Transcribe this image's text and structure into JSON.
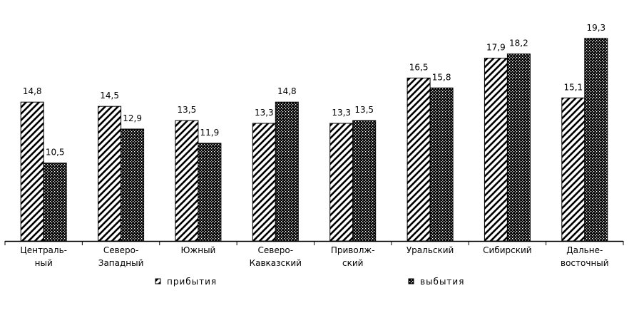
{
  "chart_data": {
    "type": "bar",
    "categories": [
      [
        "Централь-",
        "ный"
      ],
      [
        "Северо-",
        "Западный"
      ],
      [
        "Южный"
      ],
      [
        "Северо-",
        "Кавказский"
      ],
      [
        "Приволж-",
        "ский"
      ],
      [
        "Уральский"
      ],
      [
        "Сибирский"
      ],
      [
        "Дальне-",
        "восточный"
      ]
    ],
    "series": [
      {
        "name": "прибытия",
        "values": [
          14.8,
          14.5,
          13.5,
          13.3,
          13.3,
          16.5,
          17.9,
          15.1
        ],
        "labels": [
          "14,8",
          "14,5",
          "13,5",
          "13,3",
          "13,3",
          "16,5",
          "17,9",
          "15,1"
        ],
        "pattern": "diagonal-hatch"
      },
      {
        "name": "выбытия",
        "values": [
          10.5,
          12.9,
          11.9,
          14.8,
          13.5,
          15.8,
          18.2,
          19.3
        ],
        "labels": [
          "10,5",
          "12,9",
          "11,9",
          "14,8",
          "13,5",
          "15,8",
          "18,2",
          "19,3"
        ],
        "pattern": "crosshatch"
      }
    ],
    "ylim": [
      5,
      21
    ],
    "grid": false,
    "legend_position": "bottom"
  }
}
